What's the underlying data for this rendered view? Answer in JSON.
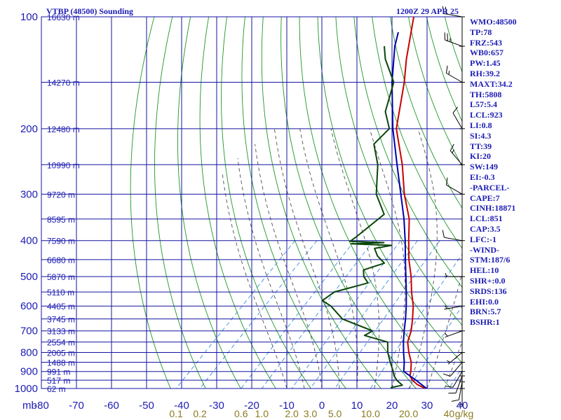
{
  "header": {
    "station": "VTBP (48500) Sounding",
    "time": "1200Z 29 APR 25"
  },
  "chart_data": {
    "type": "line",
    "title": "VTBP (48500) Sounding",
    "xlabel": "",
    "ylabel": "mb",
    "pressure_ticks": [
      100,
      200,
      300,
      400,
      500,
      600,
      700,
      800,
      900,
      1000
    ],
    "temperature_ticks": [
      -80,
      -70,
      -60,
      -50,
      -40,
      -30,
      -20,
      -10,
      0,
      10,
      20,
      30,
      40
    ],
    "xlim": [
      -80,
      40
    ],
    "ylim": [
      1000,
      100
    ],
    "height_labels": [
      {
        "p": 100,
        "label": "16630 m"
      },
      {
        "p": 150,
        "label": "14270 m"
      },
      {
        "p": 200,
        "label": "12480 m"
      },
      {
        "p": 250,
        "label": "10990 m"
      },
      {
        "p": 300,
        "label": "9720 m"
      },
      {
        "p": 350,
        "label": "8595 m"
      },
      {
        "p": 400,
        "label": "7590 m"
      },
      {
        "p": 450,
        "label": "6680 m"
      },
      {
        "p": 500,
        "label": "5870 m"
      },
      {
        "p": 550,
        "label": "5110 m"
      },
      {
        "p": 600,
        "label": "4405 m"
      },
      {
        "p": 650,
        "label": "3745 m"
      },
      {
        "p": 700,
        "label": "3133 m"
      },
      {
        "p": 750,
        "label": "2554 m"
      },
      {
        "p": 800,
        "label": "2005 m"
      },
      {
        "p": 850,
        "label": "1488 m"
      },
      {
        "p": 900,
        "label": "991 m"
      },
      {
        "p": 950,
        "label": "517 m"
      },
      {
        "p": 1000,
        "label": "62 m"
      }
    ],
    "mixing_ratio_labels": [
      {
        "w": 0.1,
        "label": "0.1"
      },
      {
        "w": 0.2,
        "label": "0.2"
      },
      {
        "w": 0.6,
        "label": "0.6"
      },
      {
        "w": 1.0,
        "label": "1.0"
      },
      {
        "w": 2.0,
        "label": "2.0"
      },
      {
        "w": 3.0,
        "label": "3.0"
      },
      {
        "w": 5.0,
        "label": "5.0"
      },
      {
        "w": 10.0,
        "label": "10.0"
      },
      {
        "w": 20.0,
        "label": "20.0"
      },
      {
        "w": 40.0,
        "label": "40"
      }
    ],
    "mixing_ratio_unit": "g/kg",
    "series": [
      {
        "name": "temperature",
        "color": "#c80000",
        "points": [
          [
            1006,
            30.5
          ],
          [
            1000,
            29.5
          ],
          [
            975,
            26
          ],
          [
            950,
            23.5
          ],
          [
            925,
            21.5
          ],
          [
            900,
            20.5
          ],
          [
            850,
            18
          ],
          [
            800,
            14.5
          ],
          [
            750,
            11.2
          ],
          [
            700,
            9
          ],
          [
            650,
            6
          ],
          [
            600,
            2.5
          ],
          [
            550,
            -2
          ],
          [
            500,
            -6.5
          ],
          [
            450,
            -12
          ],
          [
            400,
            -17.5
          ],
          [
            350,
            -23.5
          ],
          [
            300,
            -32
          ],
          [
            250,
            -41
          ],
          [
            200,
            -53
          ],
          [
            150,
            -64
          ],
          [
            130,
            -70
          ],
          [
            100,
            -80
          ]
        ]
      },
      {
        "name": "parcel",
        "color": "#0000aa",
        "points": [
          [
            1006,
            30.5
          ],
          [
            950,
            24.5
          ],
          [
            900,
            18.5
          ],
          [
            850,
            16
          ],
          [
            800,
            13
          ],
          [
            750,
            10
          ],
          [
            700,
            7
          ],
          [
            650,
            4
          ],
          [
            600,
            0.5
          ],
          [
            550,
            -3.5
          ],
          [
            500,
            -8
          ],
          [
            450,
            -13
          ],
          [
            400,
            -18.5
          ],
          [
            350,
            -25
          ],
          [
            300,
            -33
          ],
          [
            250,
            -42.5
          ],
          [
            200,
            -54
          ],
          [
            150,
            -67.5
          ],
          [
            120,
            -77
          ],
          [
            110,
            -80
          ]
        ]
      },
      {
        "name": "dewpoint",
        "color": "#0a460a",
        "points": [
          [
            1006,
            21
          ],
          [
            994,
            19.5
          ],
          [
            980,
            22
          ],
          [
            950,
            19
          ],
          [
            925,
            17
          ],
          [
            900,
            15.5
          ],
          [
            850,
            12
          ],
          [
            800,
            8.5
          ],
          [
            750,
            5.5
          ],
          [
            720,
            -3
          ],
          [
            700,
            -2
          ],
          [
            650,
            -14
          ],
          [
            600,
            -21
          ],
          [
            580,
            -25
          ],
          [
            550,
            -24
          ],
          [
            520,
            -17
          ],
          [
            500,
            -20
          ],
          [
            480,
            -22
          ],
          [
            460,
            -18
          ],
          [
            440,
            -22
          ],
          [
            420,
            -25
          ],
          [
            412,
            -21
          ],
          [
            408,
            -33
          ],
          [
            405,
            -24
          ],
          [
            402,
            -34
          ],
          [
            390,
            -33.5
          ],
          [
            340,
            -32
          ],
          [
            300,
            -40
          ],
          [
            250,
            -48
          ],
          [
            220,
            -55
          ],
          [
            200,
            -55
          ],
          [
            180,
            -61
          ],
          [
            150,
            -67
          ],
          [
            130,
            -76
          ],
          [
            120,
            -80
          ]
        ]
      }
    ],
    "wind_barbs": [
      {
        "p": 1000,
        "spd": 5,
        "dir": 180
      },
      {
        "p": 960,
        "spd": 10,
        "dir": 190
      },
      {
        "p": 925,
        "spd": 10,
        "dir": 200
      },
      {
        "p": 900,
        "spd": 10,
        "dir": 210
      },
      {
        "p": 850,
        "spd": 10,
        "dir": 220
      },
      {
        "p": 800,
        "spd": 5,
        "dir": 230
      },
      {
        "p": 700,
        "spd": 5,
        "dir": 250
      },
      {
        "p": 600,
        "spd": 5,
        "dir": 260
      },
      {
        "p": 500,
        "spd": 5,
        "dir": 270
      },
      {
        "p": 400,
        "spd": 10,
        "dir": 280
      },
      {
        "p": 300,
        "spd": 10,
        "dir": 300
      },
      {
        "p": 250,
        "spd": 15,
        "dir": 320
      },
      {
        "p": 200,
        "spd": 10,
        "dir": 330
      },
      {
        "p": 150,
        "spd": 15,
        "dir": 300
      },
      {
        "p": 120,
        "spd": 25,
        "dir": 290
      },
      {
        "p": 100,
        "spd": 20,
        "dir": 280
      }
    ],
    "grid": true,
    "colors": {
      "grid": "#1414a0",
      "dry_adiabat": "#1e9628",
      "moist_adiabat": "#505050",
      "mixing_ratio": "#3c8ce6",
      "wind": "#000000",
      "text": "#1c1cb4",
      "mixing_ratio_text": "#8b7a1e"
    }
  },
  "indices": [
    "WMO:48500",
    "TP:78",
    "FRZ:543",
    "WB0:657",
    "PW:1.45",
    "RH:39.2",
    "MAXT:34.2",
    "TH:5808",
    "L57:5.4",
    "LCL:923",
    "LI:0.8",
    "SI:4.3",
    "TT:39",
    "KI:20",
    "SW:149",
    "EI:-0.3",
    "-PARCEL-",
    "CAPE:7",
    "CINH:18871",
    "LCL:851",
    "CAP:3.5",
    "LFC:-1",
    "-WIND-",
    "STM:187/6",
    "HEL:10",
    "SHR+:0.0",
    "SRDS:136",
    "EHI:0.0",
    "BRN:5.7",
    "BSHR:1"
  ]
}
